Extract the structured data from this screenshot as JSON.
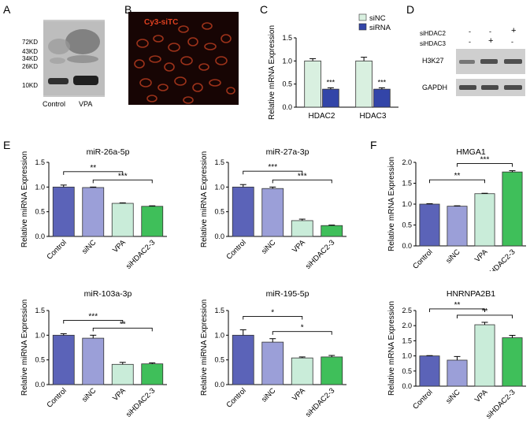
{
  "panels": {
    "A": {
      "letter": "A",
      "markers": [
        "72KD",
        "43KD",
        "34KD",
        "26KD",
        "10KD"
      ],
      "lanes": [
        "Control",
        "VPA"
      ]
    },
    "B": {
      "letter": "B",
      "image_label": "Cy3-siTC",
      "label_color": "#e04020"
    },
    "C": {
      "letter": "C"
    },
    "D": {
      "letter": "D",
      "treatments": [
        {
          "name": "siHDAC2",
          "signs": [
            "-",
            "-",
            "+"
          ]
        },
        {
          "name": "siHDAC3",
          "signs": [
            "-",
            "+",
            "-"
          ]
        }
      ],
      "bands": [
        "H3K27",
        "GAPDH"
      ]
    },
    "E": {
      "letter": "E"
    },
    "F": {
      "letter": "F"
    }
  },
  "colors": {
    "Control": "#5b63b8",
    "siNC": "#9b9fd8",
    "VPA": "#c9ecd9",
    "siHDAC2-3": "#3fbf5a",
    "siNC_C": "#d9f0e0",
    "siRNA_C": "#3345a8"
  },
  "chart_data": [
    {
      "id": "C",
      "type": "bar",
      "title": "",
      "categories": [
        "HDAC2",
        "HDAC3"
      ],
      "series": [
        {
          "name": "siNC",
          "values": [
            1.0,
            1.0
          ],
          "errors": [
            0.05,
            0.08
          ]
        },
        {
          "name": "siRNA",
          "values": [
            0.39,
            0.39
          ],
          "errors": [
            0.03,
            0.03
          ]
        }
      ],
      "ylabel": "Relative mRNA Expression",
      "ylim": [
        0,
        1.5
      ],
      "yticks": [
        0.0,
        0.5,
        1.0,
        1.5
      ],
      "legend": "top-right",
      "annotations": [
        "***",
        "***"
      ]
    },
    {
      "id": "E1",
      "type": "bar",
      "title": "miR-26a-5p",
      "categories": [
        "Control",
        "siNC",
        "VPA",
        "siHDAC2-3"
      ],
      "values": [
        1.0,
        0.99,
        0.67,
        0.61
      ],
      "errors": [
        0.04,
        0.01,
        0.01,
        0.01
      ],
      "ylabel": "Relative miRNA Expression",
      "ylim": [
        0,
        1.5
      ],
      "yticks": [
        0.0,
        0.5,
        1.0,
        1.5
      ],
      "brackets": [
        {
          "from": 0,
          "to": 2,
          "label": "**"
        },
        {
          "from": 1,
          "to": 3,
          "label": "***"
        }
      ]
    },
    {
      "id": "E2",
      "type": "bar",
      "title": "miR-27a-3p",
      "categories": [
        "Control",
        "siNC",
        "VPA",
        "siHDAC2-3"
      ],
      "values": [
        1.0,
        0.97,
        0.32,
        0.22
      ],
      "errors": [
        0.05,
        0.03,
        0.03,
        0.01
      ],
      "ylabel": "Relative miRNA Expression",
      "ylim": [
        0,
        1.5
      ],
      "yticks": [
        0.0,
        0.5,
        1.0,
        1.5
      ],
      "brackets": [
        {
          "from": 0,
          "to": 2,
          "label": "***"
        },
        {
          "from": 1,
          "to": 3,
          "label": "***"
        }
      ]
    },
    {
      "id": "E3",
      "type": "bar",
      "title": "miR-103a-3p",
      "categories": [
        "Control",
        "siNC",
        "VPA",
        "siHDAC2-3"
      ],
      "values": [
        1.0,
        0.94,
        0.41,
        0.42
      ],
      "errors": [
        0.03,
        0.06,
        0.04,
        0.02
      ],
      "ylabel": "Relative miRNA Expression",
      "ylim": [
        0,
        1.5
      ],
      "yticks": [
        0.0,
        0.5,
        1.0,
        1.5
      ],
      "brackets": [
        {
          "from": 0,
          "to": 2,
          "label": "***"
        },
        {
          "from": 1,
          "to": 3,
          "label": "**"
        }
      ]
    },
    {
      "id": "E4",
      "type": "bar",
      "title": "miR-195-5p",
      "categories": [
        "Control",
        "siNC",
        "VPA",
        "siHDAC2-3"
      ],
      "values": [
        1.0,
        0.86,
        0.54,
        0.56
      ],
      "errors": [
        0.11,
        0.07,
        0.02,
        0.03
      ],
      "ylabel": "Relative miRNA Expression",
      "ylim": [
        0,
        1.5
      ],
      "yticks": [
        0.0,
        0.5,
        1.0,
        1.5
      ],
      "brackets": [
        {
          "from": 0,
          "to": 2,
          "label": "*"
        },
        {
          "from": 1,
          "to": 3,
          "label": "*"
        }
      ]
    },
    {
      "id": "F1",
      "type": "bar",
      "title": "HMGA1",
      "categories": [
        "Control",
        "siNC",
        "VPA",
        "siHDAC2-3"
      ],
      "values": [
        1.0,
        0.95,
        1.25,
        1.77
      ],
      "errors": [
        0.01,
        0.01,
        0.01,
        0.03
      ],
      "ylabel": "Relative mRNA Expression",
      "ylim": [
        0,
        2.0
      ],
      "yticks": [
        0.0,
        0.5,
        1.0,
        1.5,
        2.0
      ],
      "brackets": [
        {
          "from": 0,
          "to": 2,
          "label": "**"
        },
        {
          "from": 1,
          "to": 3,
          "label": "***"
        }
      ]
    },
    {
      "id": "F2",
      "type": "bar",
      "title": "HNRNPA2B1",
      "categories": [
        "Control",
        "siNC",
        "VPA",
        "siHDAC2-3"
      ],
      "values": [
        1.0,
        0.86,
        2.03,
        1.6
      ],
      "errors": [
        0.01,
        0.12,
        0.08,
        0.08
      ],
      "ylabel": "Relative mRNA Expression",
      "ylim": [
        0,
        2.5
      ],
      "yticks": [
        0.0,
        0.5,
        1.0,
        1.5,
        2.0,
        2.5
      ],
      "brackets": [
        {
          "from": 0,
          "to": 2,
          "label": "**"
        },
        {
          "from": 1,
          "to": 3,
          "label": "**"
        }
      ]
    }
  ]
}
